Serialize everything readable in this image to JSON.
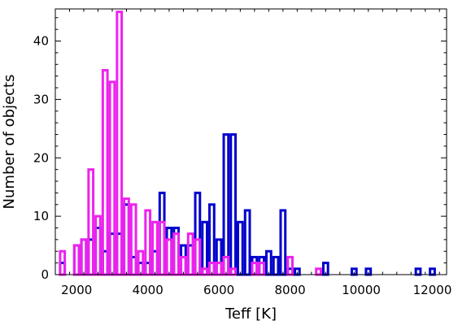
{
  "chart_data": {
    "type": "bar",
    "xlabel": "Teff [K]",
    "ylabel": "Number of objects",
    "xlim": [
      1400,
      12400
    ],
    "ylim": [
      0,
      45.5
    ],
    "bin_width": 200,
    "x_ticks": [
      2000,
      4000,
      6000,
      8000,
      10000,
      12000
    ],
    "x_tick_labels": [
      "2000",
      "4000",
      "6000",
      "8000",
      "10000",
      "12000"
    ],
    "y_ticks": [
      0,
      10,
      20,
      30,
      40
    ],
    "y_tick_labels": [
      "0",
      "10",
      "20",
      "30",
      "40"
    ],
    "grid": false,
    "legend": "none",
    "series": [
      {
        "color": "#0000cc",
        "x": [
          1600,
          2000,
          2200,
          2400,
          2600,
          2800,
          3000,
          3200,
          3400,
          3600,
          3800,
          4000,
          4200,
          4400,
          4600,
          4800,
          5000,
          5200,
          5400,
          5600,
          5800,
          6000,
          6200,
          6400,
          6600,
          6800,
          7000,
          7200,
          7400,
          7600,
          7800,
          8000,
          8200,
          9000,
          9800,
          10200,
          11600,
          12000
        ],
        "values": [
          2,
          5,
          6,
          6,
          8,
          4,
          7,
          7,
          12,
          3,
          2,
          2,
          4,
          14,
          8,
          8,
          5,
          5,
          14,
          9,
          12,
          6,
          24,
          24,
          9,
          11,
          3,
          3,
          4,
          3,
          11,
          1,
          1,
          2,
          1,
          1,
          1,
          1
        ]
      },
      {
        "color": "#ee22ee",
        "x": [
          1600,
          2000,
          2200,
          2400,
          2600,
          2800,
          3000,
          3200,
          3400,
          3600,
          3800,
          4000,
          4200,
          4400,
          4600,
          4800,
          5000,
          5200,
          5400,
          5600,
          5800,
          6000,
          6200,
          6400,
          7000,
          7200,
          8000,
          8800
        ],
        "values": [
          4,
          5,
          6,
          18,
          10,
          35,
          33,
          45,
          13,
          12,
          4,
          11,
          9,
          9,
          6,
          7,
          3,
          7,
          6,
          1,
          2,
          2,
          3,
          1,
          2,
          2,
          3,
          1
        ]
      }
    ]
  }
}
